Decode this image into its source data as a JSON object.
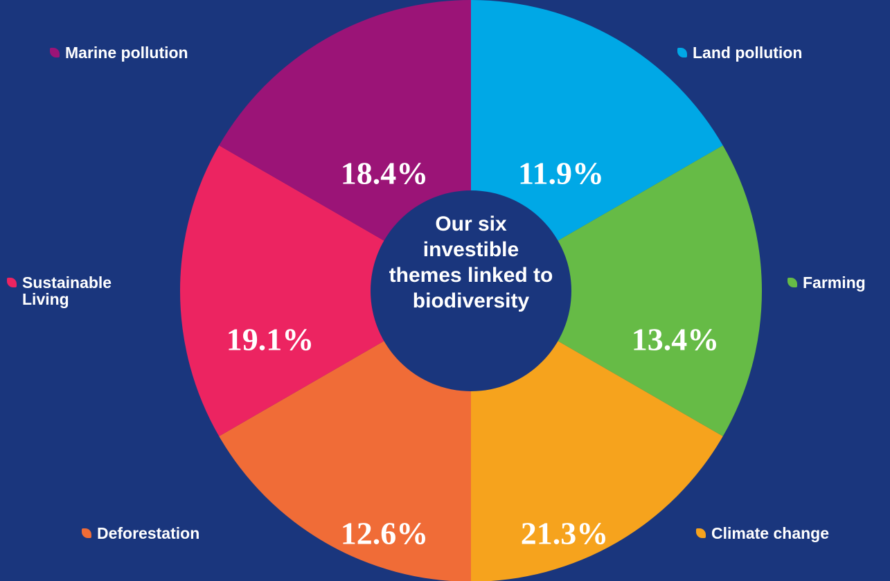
{
  "chart_data": {
    "type": "pie",
    "title": "Our six investible themes linked to biodiversity",
    "categories": [
      "Land pollution",
      "Farming",
      "Climate change",
      "Deforestation",
      "Sustainable Living",
      "Marine pollution"
    ],
    "values": [
      11.9,
      13.4,
      21.3,
      12.6,
      19.1,
      18.4
    ],
    "value_labels": [
      "11.9%",
      "13.4%",
      "21.3%",
      "12.6%",
      "19.1%",
      "18.4%"
    ],
    "colors": [
      "#00a8e6",
      "#66bb46",
      "#f6a31d",
      "#f06c37",
      "#ec2461",
      "#9b1477"
    ]
  }
}
